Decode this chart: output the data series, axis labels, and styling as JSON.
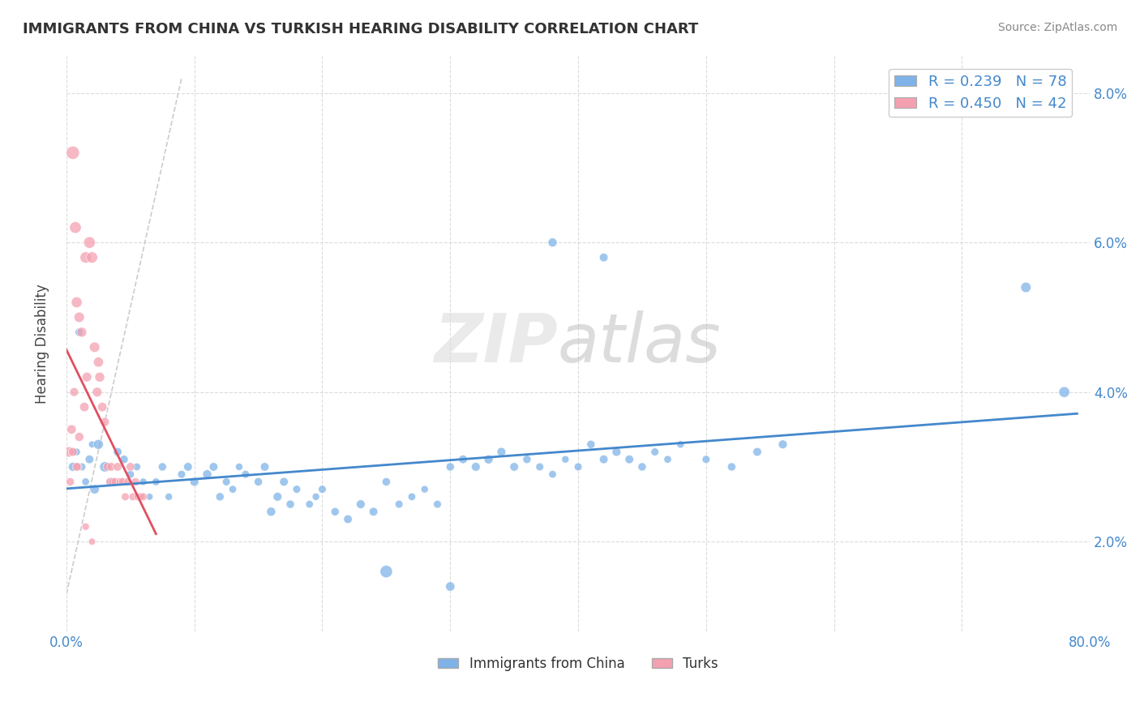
{
  "title": "IMMIGRANTS FROM CHINA VS TURKISH HEARING DISABILITY CORRELATION CHART",
  "source": "Source: ZipAtlas.com",
  "ylabel": "Hearing Disability",
  "xlim": [
    0,
    0.8
  ],
  "ylim": [
    0.008,
    0.085
  ],
  "yticks": [
    0.02,
    0.04,
    0.06,
    0.08
  ],
  "ytick_labels": [
    "2.0%",
    "4.0%",
    "6.0%",
    "8.0%"
  ],
  "xticks": [
    0.0,
    0.1,
    0.2,
    0.3,
    0.4,
    0.5,
    0.6,
    0.7,
    0.8
  ],
  "xtick_labels": [
    "0.0%",
    "",
    "",
    "",
    "",
    "",
    "",
    "",
    "80.0%"
  ],
  "legend_label1": "Immigrants from China",
  "legend_label2": "Turks",
  "R1": 0.239,
  "N1": 78,
  "R2": 0.45,
  "N2": 42,
  "color_blue": "#7FB3E8",
  "color_pink": "#F4A0B0",
  "color_blue_line": "#4488CC",
  "color_pink_line": "#E05060",
  "blue_scatter_x": [
    0.005,
    0.01,
    0.015,
    0.02,
    0.008,
    0.012,
    0.018,
    0.022,
    0.025,
    0.03,
    0.035,
    0.04,
    0.045,
    0.05,
    0.055,
    0.06,
    0.065,
    0.07,
    0.075,
    0.08,
    0.09,
    0.095,
    0.1,
    0.11,
    0.115,
    0.12,
    0.125,
    0.13,
    0.135,
    0.14,
    0.15,
    0.155,
    0.16,
    0.165,
    0.17,
    0.175,
    0.18,
    0.19,
    0.195,
    0.2,
    0.21,
    0.22,
    0.23,
    0.24,
    0.25,
    0.26,
    0.27,
    0.28,
    0.29,
    0.3,
    0.31,
    0.32,
    0.33,
    0.34,
    0.35,
    0.36,
    0.37,
    0.38,
    0.39,
    0.4,
    0.41,
    0.42,
    0.43,
    0.44,
    0.45,
    0.46,
    0.47,
    0.48,
    0.5,
    0.52,
    0.54,
    0.56,
    0.38,
    0.42,
    0.25,
    0.3,
    0.75,
    0.78
  ],
  "blue_scatter_y": [
    0.03,
    0.048,
    0.028,
    0.033,
    0.032,
    0.03,
    0.031,
    0.027,
    0.033,
    0.03,
    0.028,
    0.032,
    0.031,
    0.029,
    0.03,
    0.028,
    0.026,
    0.028,
    0.03,
    0.026,
    0.029,
    0.03,
    0.028,
    0.029,
    0.03,
    0.026,
    0.028,
    0.027,
    0.03,
    0.029,
    0.028,
    0.03,
    0.024,
    0.026,
    0.028,
    0.025,
    0.027,
    0.025,
    0.026,
    0.027,
    0.024,
    0.023,
    0.025,
    0.024,
    0.028,
    0.025,
    0.026,
    0.027,
    0.025,
    0.03,
    0.031,
    0.03,
    0.031,
    0.032,
    0.03,
    0.031,
    0.03,
    0.029,
    0.031,
    0.03,
    0.033,
    0.031,
    0.032,
    0.031,
    0.03,
    0.032,
    0.031,
    0.033,
    0.031,
    0.03,
    0.032,
    0.033,
    0.06,
    0.058,
    0.016,
    0.014,
    0.054,
    0.04
  ],
  "blue_scatter_sizes": [
    40,
    35,
    30,
    25,
    28,
    32,
    38,
    45,
    50,
    55,
    42,
    38,
    35,
    32,
    30,
    28,
    25,
    30,
    35,
    28,
    32,
    38,
    40,
    42,
    38,
    35,
    32,
    30,
    28,
    32,
    35,
    38,
    42,
    40,
    38,
    35,
    32,
    30,
    28,
    32,
    35,
    38,
    40,
    38,
    35,
    32,
    30,
    28,
    32,
    35,
    38,
    40,
    42,
    40,
    38,
    35,
    32,
    30,
    28,
    32,
    35,
    38,
    40,
    38,
    35,
    32,
    30,
    28,
    32,
    35,
    38,
    40,
    42,
    38,
    80,
    45,
    55,
    60
  ],
  "pink_scatter_x": [
    0.002,
    0.004,
    0.005,
    0.006,
    0.007,
    0.008,
    0.009,
    0.01,
    0.012,
    0.014,
    0.015,
    0.016,
    0.018,
    0.02,
    0.022,
    0.024,
    0.025,
    0.026,
    0.028,
    0.03,
    0.032,
    0.034,
    0.035,
    0.036,
    0.038,
    0.04,
    0.042,
    0.044,
    0.046,
    0.048,
    0.05,
    0.052,
    0.054,
    0.056,
    0.058,
    0.06,
    0.003,
    0.005,
    0.008,
    0.01,
    0.015,
    0.02
  ],
  "pink_scatter_y": [
    0.032,
    0.035,
    0.072,
    0.04,
    0.062,
    0.052,
    0.03,
    0.05,
    0.048,
    0.038,
    0.058,
    0.042,
    0.06,
    0.058,
    0.046,
    0.04,
    0.044,
    0.042,
    0.038,
    0.036,
    0.03,
    0.028,
    0.03,
    0.028,
    0.028,
    0.03,
    0.028,
    0.028,
    0.026,
    0.028,
    0.03,
    0.026,
    0.028,
    0.026,
    0.026,
    0.026,
    0.028,
    0.032,
    0.03,
    0.034,
    0.022,
    0.02
  ],
  "pink_scatter_sizes": [
    55,
    45,
    90,
    40,
    70,
    60,
    35,
    55,
    50,
    45,
    65,
    48,
    70,
    65,
    55,
    48,
    52,
    50,
    45,
    42,
    38,
    35,
    38,
    35,
    35,
    38,
    35,
    35,
    32,
    35,
    38,
    32,
    35,
    32,
    32,
    32,
    35,
    40,
    38,
    42,
    28,
    25
  ]
}
